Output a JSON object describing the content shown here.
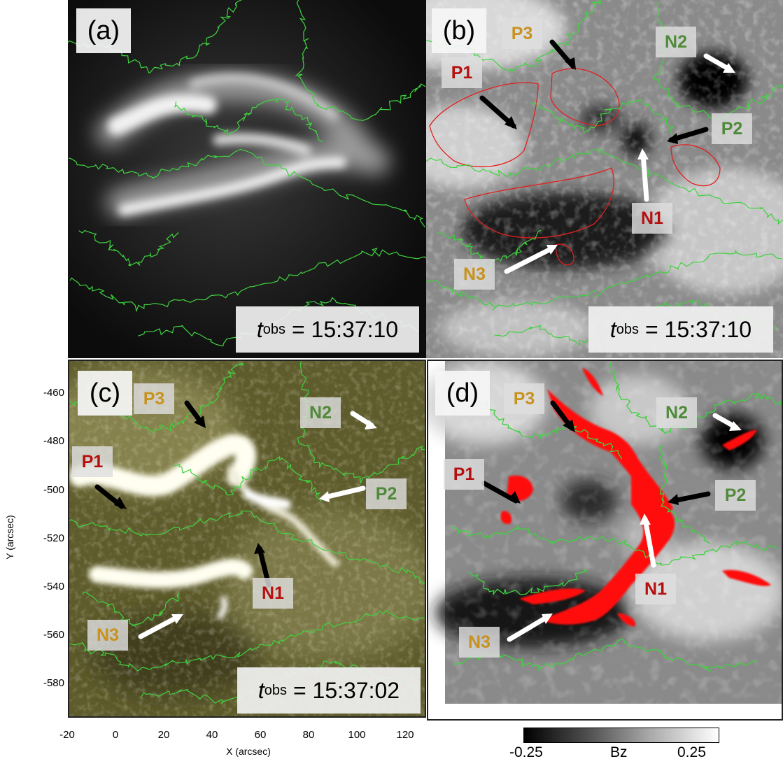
{
  "panels": {
    "a": {
      "letter": "(a)",
      "tobs_prefix": "t",
      "tobs_sub": "obs",
      "tobs_time": "= 15:37:10"
    },
    "b": {
      "letter": "(b)",
      "tobs_prefix": "t",
      "tobs_sub": "obs",
      "tobs_time": "= 15:37:10",
      "labels": {
        "P1": "P1",
        "P2": "P2",
        "P3": "P3",
        "N1": "N1",
        "N2": "N2",
        "N3": "N3"
      }
    },
    "c": {
      "letter": "(c)",
      "tobs_prefix": "t",
      "tobs_sub": "obs",
      "tobs_time": "= 15:37:02",
      "labels": {
        "P1": "P1",
        "P2": "P2",
        "P3": "P3",
        "N1": "N1",
        "N2": "N2",
        "N3": "N3"
      }
    },
    "d": {
      "letter": "(d)",
      "labels": {
        "P1": "P1",
        "P2": "P2",
        "P3": "P3",
        "N1": "N1",
        "N2": "N2",
        "N3": "N3"
      }
    }
  },
  "axes": {
    "y_label": "Y (arcsec)",
    "x_label": "X (arcsec)",
    "y_ticks": [
      "-460",
      "-480",
      "-500",
      "-520",
      "-540",
      "-560",
      "-580"
    ],
    "x_ticks": [
      "-20",
      "0",
      "20",
      "40",
      "60",
      "80",
      "100",
      "120"
    ]
  },
  "colorbar": {
    "min": "-0.25",
    "label": "Bz",
    "max": "0.25"
  },
  "colors": {
    "contour": "#3fd23f",
    "red_label": "#b51010",
    "gold_label": "#c8921e",
    "green_label": "#4f8a3a",
    "red_pil": "#ff1010"
  }
}
